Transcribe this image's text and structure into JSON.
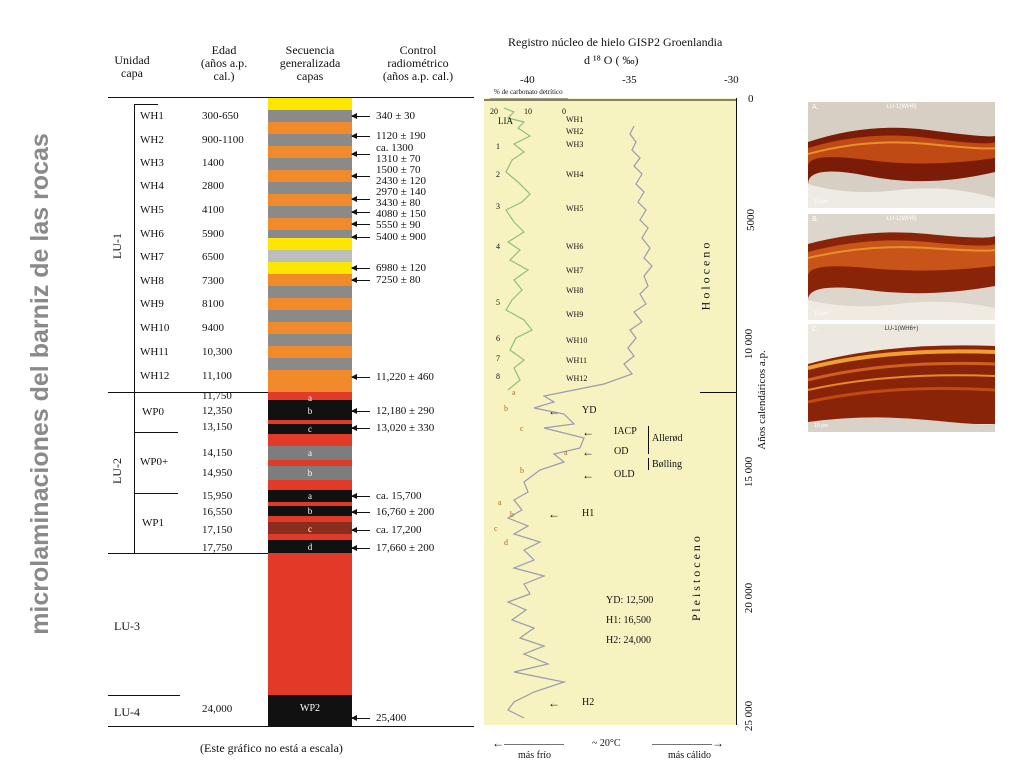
{
  "side_title": "microlaminaciones del barniz de las rocas",
  "headers": {
    "unidad": [
      "Unidad",
      "capa"
    ],
    "edad": [
      "Edad",
      "(años a.p.",
      "cal.)"
    ],
    "secuencia": [
      "Secuencia",
      "generalizada",
      "capas"
    ],
    "control": [
      "Control",
      "radiométrico",
      "(años a.p. cal.)"
    ]
  },
  "units": [
    "LU-1",
    "LU-2",
    "LU-3",
    "LU-4"
  ],
  "wh_layers": [
    {
      "name": "WH1",
      "age": "300-650"
    },
    {
      "name": "WH2",
      "age": "900-1100"
    },
    {
      "name": "WH3",
      "age": "1400"
    },
    {
      "name": "WH4",
      "age": "2800"
    },
    {
      "name": "WH5",
      "age": "4100"
    },
    {
      "name": "WH6",
      "age": "5900"
    },
    {
      "name": "WH7",
      "age": "6500"
    },
    {
      "name": "WH8",
      "age": "7300"
    },
    {
      "name": "WH9",
      "age": "8100"
    },
    {
      "name": "WH10",
      "age": "9400"
    },
    {
      "name": "WH11",
      "age": "10,300"
    },
    {
      "name": "WH12",
      "age": "11,100"
    }
  ],
  "wp_names": [
    "WP0",
    "WP0+",
    "WP1"
  ],
  "wp_ages": [
    "11,750",
    "12,350",
    "13,150",
    "14,150",
    "14,950",
    "15,950",
    "16,550",
    "17,150",
    "17,750"
  ],
  "lu4_age": "24,000",
  "seq_sublabels": [
    "a",
    "b",
    "c",
    "a",
    "b",
    "a",
    "b",
    "c",
    "d"
  ],
  "wp2_label": "WP2",
  "radiometric": [
    "340 ± 30",
    "1120 ± 190",
    "ca. 1300",
    "1310 ± 70",
    "1500 ± 70",
    "2430 ± 120",
    "2970 ± 140",
    "3430 ± 80",
    "4080 ± 150",
    "5550 ± 90",
    "5400 ± 900",
    "6980 ± 120",
    "7250 ± 80",
    "11,220 ± 460",
    "12,180 ± 290",
    "13,020 ± 330",
    "ca. 15,700",
    "16,760 ± 200",
    "ca. 17,200",
    "17,660 ± 200",
    "25,400"
  ],
  "footnote": "(Este gráfico no está a escala)",
  "ice": {
    "title": "Registro núcleo de hielo GISP2 Groenlandia",
    "subtitle": "d ¹⁸ O  ( ‰)",
    "x_ticks": [
      "-40",
      "-35",
      "-30"
    ],
    "carbonate_label": "% de carbonato detrítico",
    "carbonate_ticks": [
      "20",
      "10",
      "0"
    ],
    "lia": "LIA",
    "y_ticks": [
      "0",
      "5000",
      "10 000",
      "15 000",
      "20 000",
      "25 000"
    ],
    "y_label": "Años calendáricos a.p.",
    "holoceno": "H o l o c e n o",
    "pleistoceno": "P l e i s t o c e n o",
    "wh_marks": [
      "WH1",
      "WH2",
      "WH3",
      "WH4",
      "WH5",
      "WH6",
      "WH7",
      "WH8",
      "WH9",
      "WH10",
      "WH11",
      "WH12"
    ],
    "numbers": [
      "1",
      "2",
      "3",
      "4",
      "5",
      "6",
      "7",
      "8"
    ],
    "events": [
      "YD",
      "IACP",
      "OD",
      "OLD",
      "H1",
      "H2"
    ],
    "allerod": "Allerød",
    "bolling": "Bølling",
    "small_letters": [
      "a",
      "b",
      "c",
      "a",
      "b",
      "a",
      "b",
      "c",
      "d"
    ],
    "legend": [
      "YD:  12,500",
      "H1:  16,500",
      "H2:  24,000"
    ],
    "bottom": [
      "más frío",
      "~ 20°C",
      "más cálido"
    ]
  },
  "thumbs": [
    {
      "letter": "A.",
      "caption": "LU-1(WH6)"
    },
    {
      "letter": "B.",
      "caption": "LU-1(WH6)"
    },
    {
      "letter": "C.",
      "caption": "LU-1(WH6+)"
    }
  ],
  "thumb_scale": "10 µm"
}
